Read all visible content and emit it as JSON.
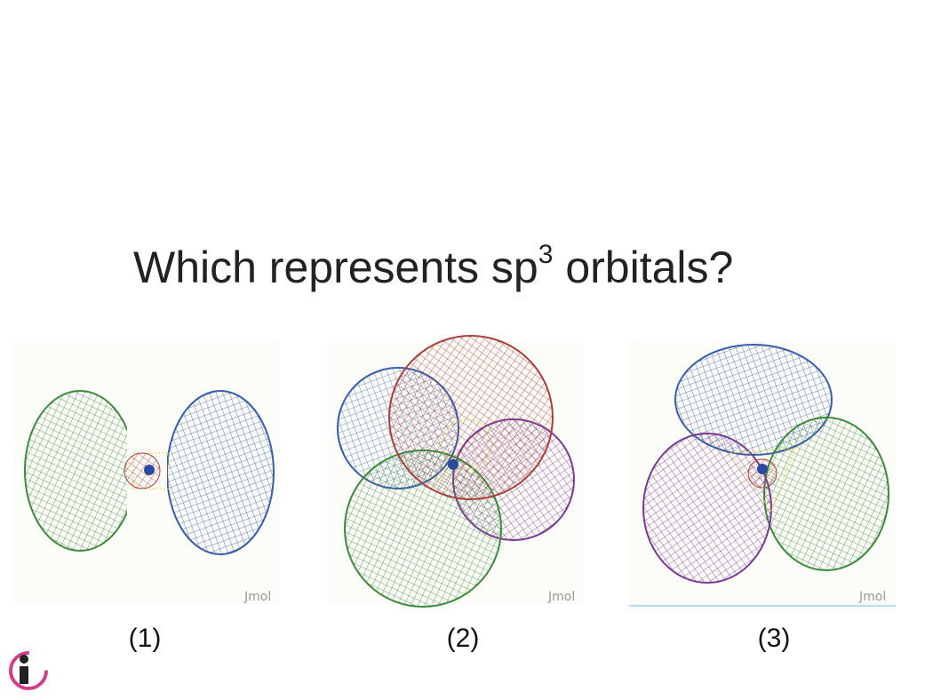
{
  "slide": {
    "question": {
      "text": "Which represents sp",
      "superscript": "3",
      "text_after": " orbitals?"
    },
    "panels": [
      {
        "label": "(1)",
        "watermark": "Jmol"
      },
      {
        "label": "(2)",
        "watermark": "Jmol"
      },
      {
        "label": "(3)",
        "watermark": "Jmol"
      }
    ]
  }
}
